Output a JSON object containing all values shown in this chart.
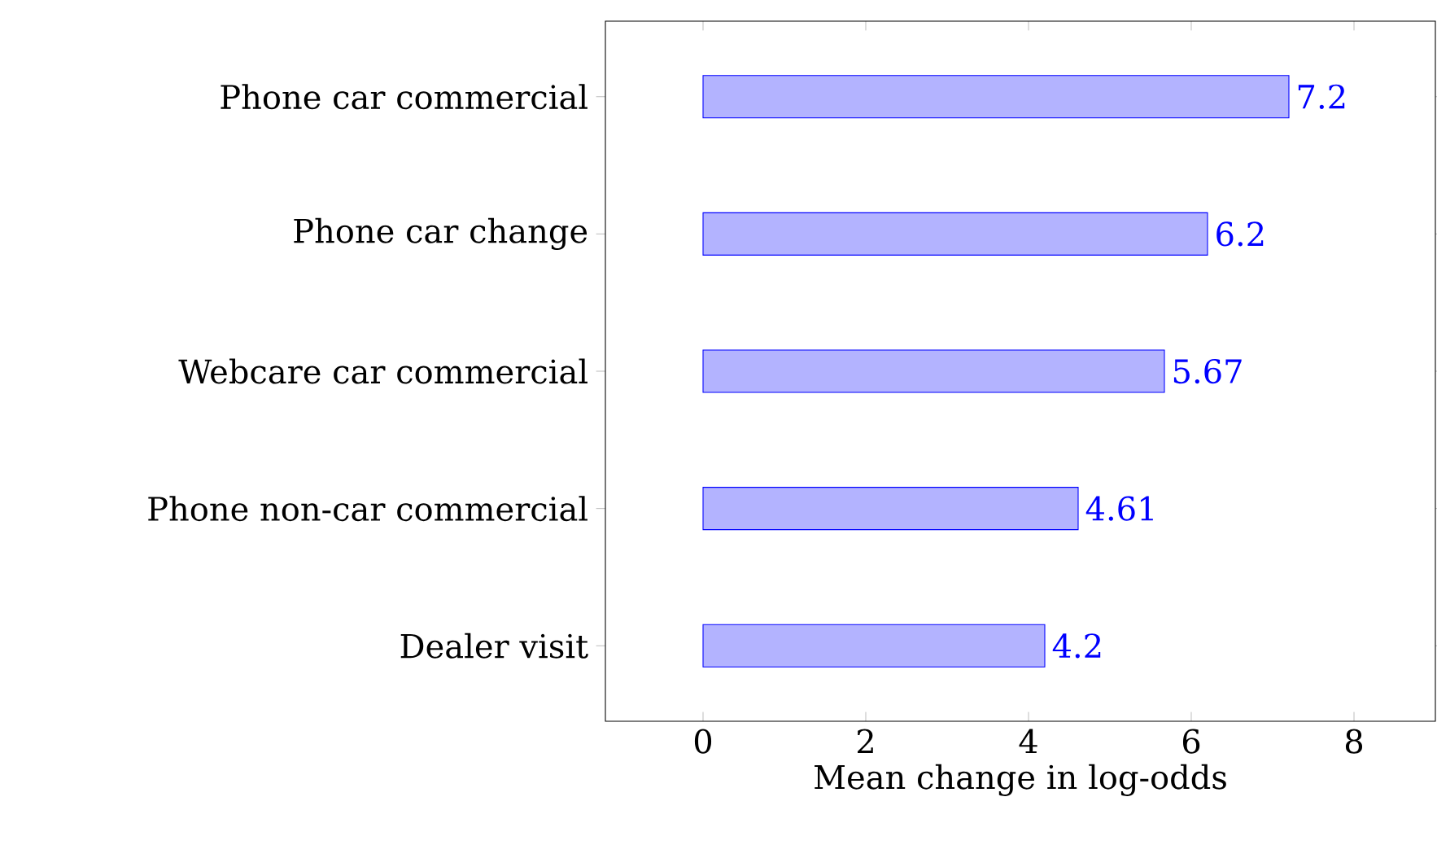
{
  "chart_data": {
    "type": "bar",
    "orientation": "horizontal",
    "xlabel": "Mean change in log-odds",
    "categories": [
      "Phone car commercial",
      "Phone car change",
      "Webcare car commercial",
      "Phone non-car commercial",
      "Dealer visit"
    ],
    "values": [
      7.2,
      6.2,
      5.67,
      4.61,
      4.2
    ],
    "color": "#b3b3ff",
    "xlim": [
      -1.2,
      9
    ],
    "xticks": [
      0,
      2,
      4,
      6,
      8
    ],
    "data_labels": true
  }
}
